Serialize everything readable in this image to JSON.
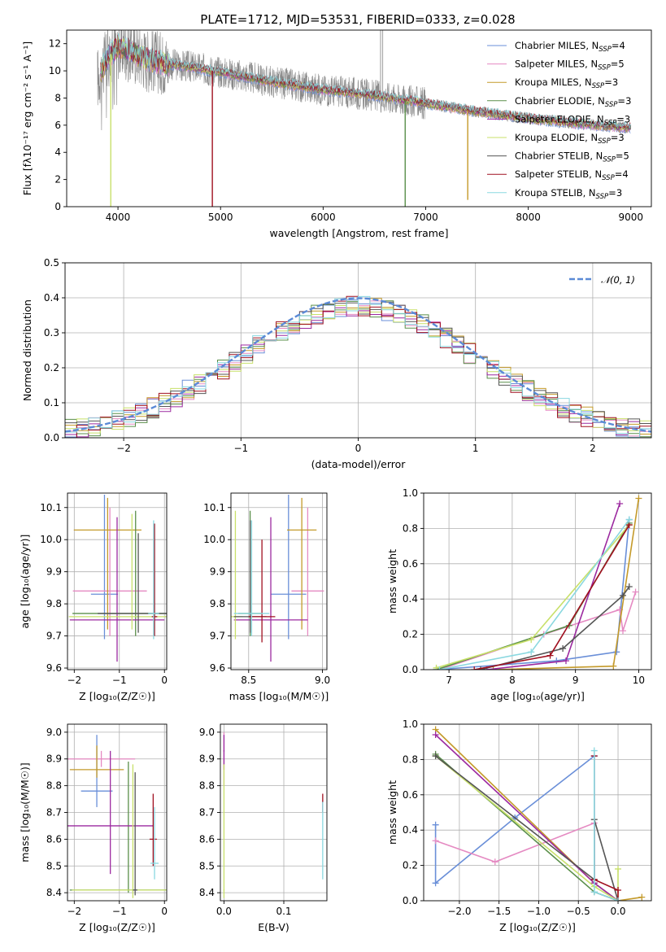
{
  "figure": {
    "title": "PLATE=1712, MJD=53531, FIBERID=0333, z=0.028"
  },
  "series": [
    {
      "name": "Chabrier MILES",
      "nssp": "4",
      "color": "#6a8fd8"
    },
    {
      "name": "Salpeter MILES",
      "nssp": "5",
      "color": "#e58ac2"
    },
    {
      "name": "Kroupa MILES",
      "nssp": "3",
      "color": "#c49a2a"
    },
    {
      "name": "Chabrier ELODIE",
      "nssp": "3",
      "color": "#5a8f4a"
    },
    {
      "name": "Salpeter ELODIE",
      "nssp": "3",
      "color": "#9c2aa0"
    },
    {
      "name": "Kroupa ELODIE",
      "nssp": "3",
      "color": "#c8e06a"
    },
    {
      "name": "Chabrier STELIB",
      "nssp": "5",
      "color": "#555555"
    },
    {
      "name": "Salpeter STELIB",
      "nssp": "4",
      "color": "#a01020"
    },
    {
      "name": "Kroupa STELIB",
      "nssp": "3",
      "color": "#8ad8e0"
    }
  ],
  "chart_data": [
    {
      "id": "spectrum",
      "type": "line",
      "xlabel": "wavelength [Angstrom, rest frame]",
      "ylabel": "Flux [fλ10⁻¹⁷ erg cm⁻² s⁻¹ A⁻¹]",
      "xlim": [
        3500,
        9200
      ],
      "ylim": [
        0,
        13
      ],
      "xticks": [
        4000,
        5000,
        6000,
        7000,
        8000,
        9000
      ],
      "yticks": [
        0,
        2,
        4,
        6,
        8,
        10,
        12
      ],
      "grid": false,
      "legend": "top-right",
      "data_color": "#888888",
      "continuum": {
        "x": [
          3800,
          3900,
          4000,
          4100,
          4300,
          4500,
          4700,
          5000,
          5500,
          6000,
          6500,
          7000,
          7500,
          8000,
          8500,
          9000
        ],
        "y": [
          9.5,
          11.0,
          11.8,
          11.5,
          10.8,
          10.5,
          10.3,
          9.9,
          9.2,
          8.6,
          8.2,
          7.6,
          7.0,
          6.5,
          6.1,
          5.8
        ]
      },
      "absorption_lines": [
        {
          "x": 3930,
          "ymin": 0.0,
          "series": 5
        },
        {
          "x": 4920,
          "ymin": 0.0,
          "series": 7
        },
        {
          "x": 6800,
          "ymin": 0.0,
          "series": 3
        },
        {
          "x": 7410,
          "ymin": 0.5,
          "series": 2
        }
      ],
      "emission_spike": {
        "x": 6560,
        "ymax": 13
      }
    },
    {
      "id": "residuals",
      "type": "histogram",
      "xlabel": "(data-model)/error",
      "ylabel": "Normed distribution",
      "xlim": [
        -2.5,
        2.5
      ],
      "ylim": [
        0,
        0.5
      ],
      "xticks": [
        -2,
        -1,
        0,
        1,
        2
      ],
      "yticks": [
        0.0,
        0.1,
        0.2,
        0.3,
        0.4,
        0.5
      ],
      "grid": true,
      "legend": "top-right",
      "reference": {
        "name": "𝒩(0, 1)",
        "mu": 0,
        "sigma": 1,
        "color": "#5b8ad6"
      },
      "bin_width": 0.1,
      "bin_start": -2.5
    },
    {
      "id": "age_vs_Z",
      "type": "errorbar",
      "xlabel": "Z [log₁₀(Z/Z☉)]",
      "ylabel": "age  [log₁₀(age/yr)]",
      "xlim": [
        -2.15,
        0.05
      ],
      "ylim": [
        9.595,
        10.145
      ],
      "xticks": [
        -2,
        -1,
        0
      ],
      "yticks": [
        9.6,
        9.7,
        9.8,
        9.9,
        10.0,
        10.1
      ],
      "grid": true,
      "points": [
        {
          "s": 0,
          "x": -1.33,
          "y": 9.83,
          "xerr": 0.3,
          "ylo": 9.69,
          "yhi": 10.14
        },
        {
          "s": 1,
          "x": -1.21,
          "y": 9.84,
          "xerr": 0.82,
          "ylo": 9.7,
          "yhi": 10.1
        },
        {
          "s": 2,
          "x": -1.26,
          "y": 10.03,
          "xerr": 0.75,
          "ylo": 9.72,
          "yhi": 10.13
        },
        {
          "s": 3,
          "x": -0.64,
          "y": 9.77,
          "xerr": 1.4,
          "ylo": 9.7,
          "yhi": 10.09
        },
        {
          "s": 4,
          "x": -1.05,
          "y": 9.75,
          "xerr": 1.05,
          "ylo": 9.62,
          "yhi": 10.07
        },
        {
          "s": 5,
          "x": -0.72,
          "y": 9.76,
          "xerr": 1.4,
          "ylo": 9.72,
          "yhi": 10.08
        },
        {
          "s": 6,
          "x": -0.58,
          "y": 9.77,
          "xerr": 0.9,
          "ylo": 9.71,
          "yhi": 10.02
        },
        {
          "s": 7,
          "x": -0.22,
          "y": 9.76,
          "xerr": 0.06,
          "ylo": 9.7,
          "yhi": 10.05
        },
        {
          "s": 8,
          "x": -0.24,
          "y": 9.77,
          "xerr": 0.12,
          "ylo": 9.69,
          "yhi": 10.06
        }
      ]
    },
    {
      "id": "age_vs_mass",
      "type": "errorbar",
      "xlabel": "mass [log₁₀(M/M☉)]",
      "ylabel": "",
      "xlim": [
        8.38,
        9.03
      ],
      "ylim": [
        9.595,
        10.145
      ],
      "xticks": [
        8.5,
        9.0
      ],
      "yticks": [
        9.6,
        9.7,
        9.8,
        9.9,
        10.0,
        10.1
      ],
      "grid": true,
      "points": [
        {
          "s": 0,
          "x": 8.77,
          "y": 9.83,
          "xerr": 0.12,
          "ylo": 9.69,
          "yhi": 10.14
        },
        {
          "s": 1,
          "x": 8.9,
          "y": 9.84,
          "xerr": 0.11,
          "ylo": 9.7,
          "yhi": 10.1
        },
        {
          "s": 2,
          "x": 8.86,
          "y": 10.03,
          "xerr": 0.1,
          "ylo": 9.72,
          "yhi": 10.13
        },
        {
          "s": 3,
          "x": 8.51,
          "y": 9.77,
          "xerr": 0.08,
          "ylo": 9.7,
          "yhi": 10.09
        },
        {
          "s": 4,
          "x": 8.65,
          "y": 9.75,
          "xerr": 0.25,
          "ylo": 9.62,
          "yhi": 10.07
        },
        {
          "s": 5,
          "x": 8.41,
          "y": 9.76,
          "xerr": 0.05,
          "ylo": 9.69,
          "yhi": 10.09
        },
        {
          "s": 6,
          "x": 8.51,
          "y": 9.76,
          "xerr": 0.11,
          "ylo": 9.71,
          "yhi": 10.06
        },
        {
          "s": 7,
          "x": 8.59,
          "y": 9.76,
          "xerr": 0.09,
          "ylo": 9.68,
          "yhi": 10.0
        },
        {
          "s": 8,
          "x": 8.52,
          "y": 9.77,
          "xerr": 0.12,
          "ylo": 9.7,
          "yhi": 10.06
        }
      ]
    },
    {
      "id": "weight_vs_age",
      "type": "line",
      "xlabel": "age  [log₁₀(age/yr)]",
      "ylabel": "mass weight",
      "xlim": [
        6.6,
        10.2
      ],
      "ylim": [
        0,
        1.0
      ],
      "xticks": [
        7,
        8,
        9,
        10
      ],
      "yticks": [
        0.0,
        0.2,
        0.4,
        0.6,
        0.8,
        1.0
      ],
      "grid": true,
      "lines": [
        {
          "s": 0,
          "x": [
            6.8,
            8.7,
            9.65,
            9.85
          ],
          "y": [
            0.0,
            0.05,
            0.1,
            0.85
          ]
        },
        {
          "s": 1,
          "x": [
            6.85,
            8.5,
            9.7,
            9.75,
            9.95
          ],
          "y": [
            0.0,
            0.2,
            0.34,
            0.22,
            0.44
          ]
        },
        {
          "s": 2,
          "x": [
            7.7,
            9.6,
            10.0
          ],
          "y": [
            0.0,
            0.02,
            0.97
          ]
        },
        {
          "s": 3,
          "x": [
            6.8,
            8.9,
            9.85
          ],
          "y": [
            0.0,
            0.25,
            0.83
          ]
        },
        {
          "s": 4,
          "x": [
            7.6,
            8.85,
            9.7
          ],
          "y": [
            0.0,
            0.05,
            0.94
          ]
        },
        {
          "s": 5,
          "x": [
            6.8,
            8.3,
            9.85
          ],
          "y": [
            0.01,
            0.17,
            0.82
          ]
        },
        {
          "s": 6,
          "x": [
            7.5,
            8.8,
            9.75,
            9.85
          ],
          "y": [
            0.0,
            0.12,
            0.42,
            0.47
          ]
        },
        {
          "s": 7,
          "x": [
            7.4,
            8.6,
            9.85
          ],
          "y": [
            0.0,
            0.08,
            0.82
          ]
        },
        {
          "s": 8,
          "x": [
            6.85,
            8.3,
            9.85
          ],
          "y": [
            0.0,
            0.1,
            0.85
          ]
        }
      ]
    },
    {
      "id": "mass_vs_Z",
      "type": "errorbar",
      "xlabel": "Z [log₁₀(Z/Z☉)]",
      "ylabel": "mass [log₁₀(M/M☉)]",
      "xlim": [
        -2.15,
        0.05
      ],
      "ylim": [
        8.37,
        9.03
      ],
      "xticks": [
        -2,
        -1,
        0
      ],
      "yticks": [
        8.4,
        8.5,
        8.6,
        8.7,
        8.8,
        8.9,
        9.0
      ],
      "grid": true,
      "points": [
        {
          "s": 0,
          "x": -1.5,
          "y": 8.78,
          "xerr": 0.35,
          "ylo": 8.72,
          "yhi": 8.99
        },
        {
          "s": 1,
          "x": -1.4,
          "y": 8.9,
          "xerr": 0.75,
          "ylo": 8.87,
          "yhi": 8.93
        },
        {
          "s": 2,
          "x": -1.5,
          "y": 8.86,
          "xerr": 0.6,
          "ylo": 8.83,
          "yhi": 8.95
        },
        {
          "s": 3,
          "x": -0.8,
          "y": 8.41,
          "xerr": 1.3,
          "ylo": 8.4,
          "yhi": 8.89
        },
        {
          "s": 4,
          "x": -1.2,
          "y": 8.65,
          "xerr": 0.95,
          "ylo": 8.47,
          "yhi": 8.93
        },
        {
          "s": 5,
          "x": -0.7,
          "y": 8.41,
          "xerr": 1.35,
          "ylo": 8.38,
          "yhi": 8.88
        },
        {
          "s": 6,
          "x": -0.65,
          "y": 8.41,
          "xerr": 0.05,
          "ylo": 8.39,
          "yhi": 8.85
        },
        {
          "s": 7,
          "x": -0.25,
          "y": 8.6,
          "xerr": 0.08,
          "ylo": 8.5,
          "yhi": 8.77
        },
        {
          "s": 8,
          "x": -0.22,
          "y": 8.51,
          "xerr": 0.09,
          "ylo": 8.45,
          "yhi": 8.72
        }
      ]
    },
    {
      "id": "mass_vs_ebv",
      "type": "errorbar",
      "xlabel": "E(B-V)",
      "ylabel": "",
      "xlim": [
        -0.006,
        0.172
      ],
      "ylim": [
        8.37,
        9.03
      ],
      "xticks": [
        0.0,
        0.1
      ],
      "yticks": [
        8.4,
        8.5,
        8.6,
        8.7,
        8.8,
        8.9,
        9.0
      ],
      "grid": true,
      "points": [
        {
          "s": 1,
          "x": 0.0,
          "y": 8.9,
          "xerr": 0.001,
          "ylo": 8.8,
          "yhi": 9.0
        },
        {
          "s": 4,
          "x": 0.0,
          "y": 8.93,
          "xerr": 0.001,
          "ylo": 8.86,
          "yhi": 8.99
        },
        {
          "s": 5,
          "x": 0.0,
          "y": 8.41,
          "xerr": 0.001,
          "ylo": 8.38,
          "yhi": 8.88
        },
        {
          "s": 7,
          "x": 0.165,
          "y": 8.74,
          "xerr": 0.001,
          "ylo": 8.7,
          "yhi": 8.77
        },
        {
          "s": 8,
          "x": 0.165,
          "y": 8.6,
          "xerr": 0.001,
          "ylo": 8.45,
          "yhi": 8.74
        }
      ]
    },
    {
      "id": "weight_vs_Z",
      "type": "line",
      "xlabel": "Z [log₁₀(Z/Z☉)]",
      "ylabel": "mass weight",
      "xlim": [
        -2.45,
        0.42
      ],
      "ylim": [
        0,
        1.0
      ],
      "xticks": [
        -2.0,
        -1.5,
        -1.0,
        -0.5,
        0.0
      ],
      "yticks": [
        0.0,
        0.2,
        0.4,
        0.6,
        0.8,
        1.0
      ],
      "grid": true,
      "lines": [
        {
          "s": 0,
          "x": [
            -2.3,
            -2.3,
            -1.3,
            -0.3,
            -0.3,
            0.0
          ],
          "y": [
            0.43,
            0.1,
            0.47,
            0.82,
            0.1,
            0.0
          ]
        },
        {
          "s": 1,
          "x": [
            -2.3,
            -1.55,
            -0.3,
            -0.3,
            0.0
          ],
          "y": [
            0.34,
            0.22,
            0.44,
            0.05,
            0.0
          ]
        },
        {
          "s": 2,
          "x": [
            -2.3,
            -0.3,
            0.0,
            0.3
          ],
          "y": [
            0.97,
            0.1,
            0.0,
            0.02
          ]
        },
        {
          "s": 3,
          "x": [
            -2.3,
            -0.3,
            0.0
          ],
          "y": [
            0.83,
            0.05,
            0.0
          ]
        },
        {
          "s": 4,
          "x": [
            -2.3,
            -0.3,
            0.0
          ],
          "y": [
            0.94,
            0.1,
            0.0
          ]
        },
        {
          "s": 5,
          "x": [
            -2.3,
            -0.3,
            0.0,
            0.0
          ],
          "y": [
            0.82,
            0.08,
            0.0,
            0.18
          ]
        },
        {
          "s": 6,
          "x": [
            -2.3,
            -0.3,
            -0.3,
            0.0
          ],
          "y": [
            0.82,
            0.12,
            0.46,
            0.0
          ]
        },
        {
          "s": 7,
          "x": [
            -0.3,
            -0.3,
            0.0,
            0.0
          ],
          "y": [
            0.82,
            0.12,
            0.06,
            0.0
          ]
        },
        {
          "s": 8,
          "x": [
            -0.3,
            -0.3,
            0.0
          ],
          "y": [
            0.85,
            0.05,
            0.0
          ]
        }
      ]
    }
  ]
}
